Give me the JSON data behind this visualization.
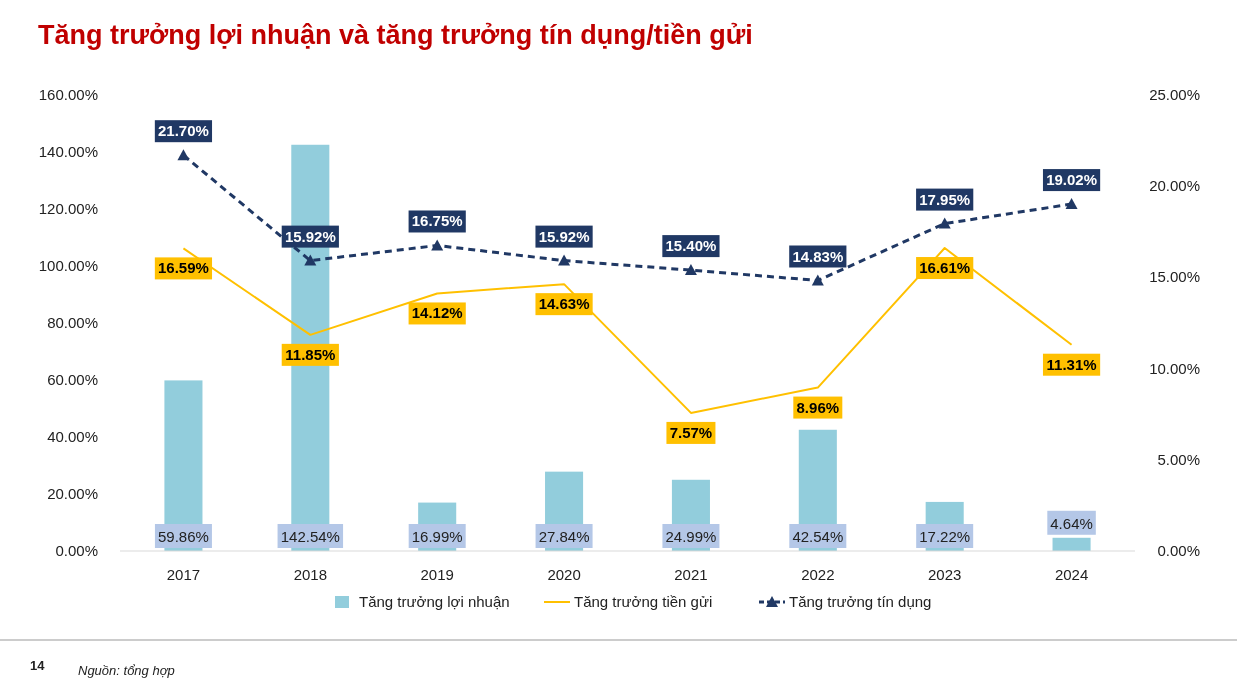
{
  "chart_data": {
    "type": "bar",
    "title": "Tăng trưởng lợi nhuận và tăng trưởng tín dụng/tiền gửi",
    "categories": [
      "2017",
      "2018",
      "2019",
      "2020",
      "2021",
      "2022",
      "2023",
      "2024"
    ],
    "series": [
      {
        "name": "Tăng trưởng lợi nhuận",
        "type": "bar",
        "color": "#92cddc",
        "values": [
          59.86,
          142.54,
          16.99,
          27.84,
          24.99,
          42.54,
          17.22,
          4.64
        ],
        "value_labels": [
          "59.86%",
          "142.54%",
          "16.99%",
          "27.84%",
          "24.99%",
          "42.54%",
          "17.22%",
          "4.64%"
        ]
      },
      {
        "name": "Tăng trưởng tiền gửi",
        "type": "line",
        "axis": "y2",
        "color": "#ffc000",
        "marker": "none",
        "line_style": "solid",
        "values": [
          16.59,
          11.85,
          14.12,
          14.63,
          7.57,
          8.96,
          16.61,
          11.31
        ],
        "value_labels": [
          "16.59%",
          "11.85%",
          "14.12%",
          "14.63%",
          "7.57%",
          "8.96%",
          "16.61%",
          "11.31%"
        ]
      },
      {
        "name": "Tăng trưởng tín dụng",
        "type": "line",
        "axis": "y2",
        "color": "#203864",
        "marker": "triangle",
        "line_style": "dashed",
        "values": [
          21.7,
          15.92,
          16.75,
          15.92,
          15.4,
          14.83,
          17.95,
          19.02
        ],
        "value_labels": [
          "21.70%",
          "15.92%",
          "16.75%",
          "15.92%",
          "15.40%",
          "14.83%",
          "17.95%",
          "19.02%"
        ]
      }
    ],
    "ylim": [
      0,
      160
    ],
    "yticks": [
      {
        "value": 0,
        "label": "0.00%"
      },
      {
        "value": 20,
        "label": "20.00%"
      },
      {
        "value": 40,
        "label": "40.00%"
      },
      {
        "value": 60,
        "label": "60.00%"
      },
      {
        "value": 80,
        "label": "80.00%"
      },
      {
        "value": 100,
        "label": "100.00%"
      },
      {
        "value": 120,
        "label": "120.00%"
      },
      {
        "value": 140,
        "label": "140.00%"
      },
      {
        "value": 160,
        "label": "160.00%"
      }
    ],
    "y2lim": [
      0,
      25
    ],
    "y2ticks": [
      {
        "value": 0,
        "label": "0.00%"
      },
      {
        "value": 5,
        "label": "5.00%"
      },
      {
        "value": 10,
        "label": "10.00%"
      },
      {
        "value": 15,
        "label": "15.00%"
      },
      {
        "value": 20,
        "label": "20.00%"
      },
      {
        "value": 25,
        "label": "25.00%"
      }
    ],
    "grid": false,
    "legend": "bottom",
    "annotations": [
      "14",
      "Nguồn: tổng hợp"
    ]
  }
}
